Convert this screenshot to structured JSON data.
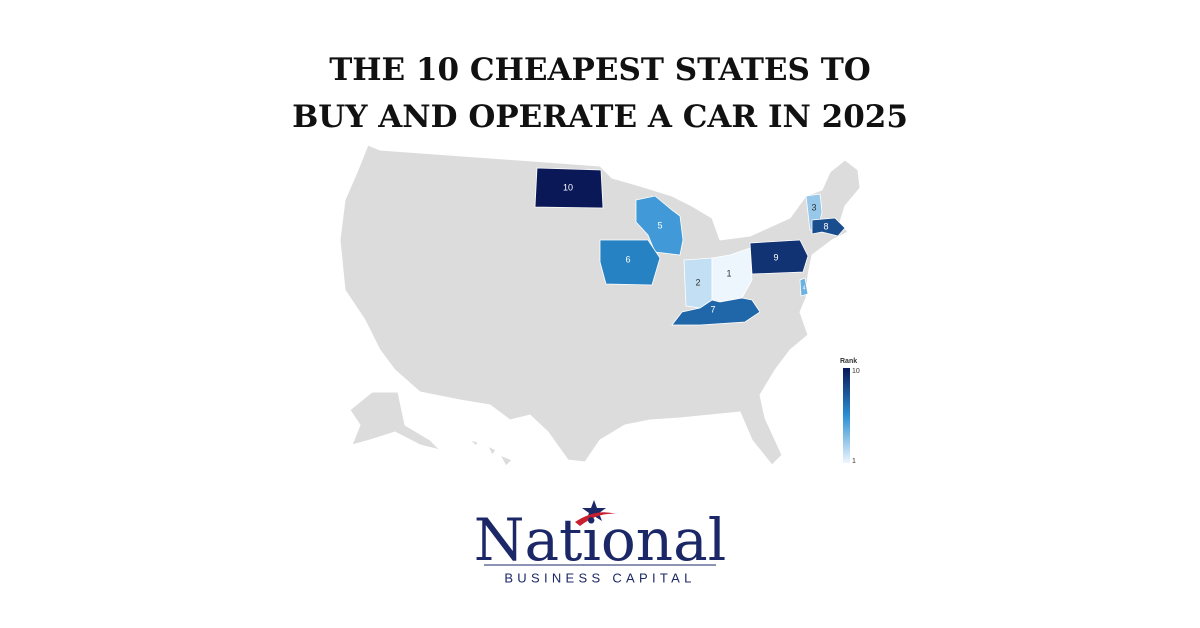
{
  "title": [
    "THE 10 CHEAPEST STATES TO",
    "BUY AND OPERATE A CAR IN 2025"
  ],
  "map": {
    "ranks": [
      10,
      5,
      3,
      8,
      6,
      2,
      1,
      9,
      7,
      4
    ],
    "legend": {
      "title": "Rank",
      "min": 1,
      "max": 10,
      "min_label": "1",
      "max_label": "10",
      "colors": [
        "#eef6fd",
        "#2b8fd2",
        "#0a1858"
      ]
    },
    "base_color": "#dcdcdc"
  },
  "logo": {
    "name": "National",
    "tagline": "BUSINESS CAPITAL"
  }
}
